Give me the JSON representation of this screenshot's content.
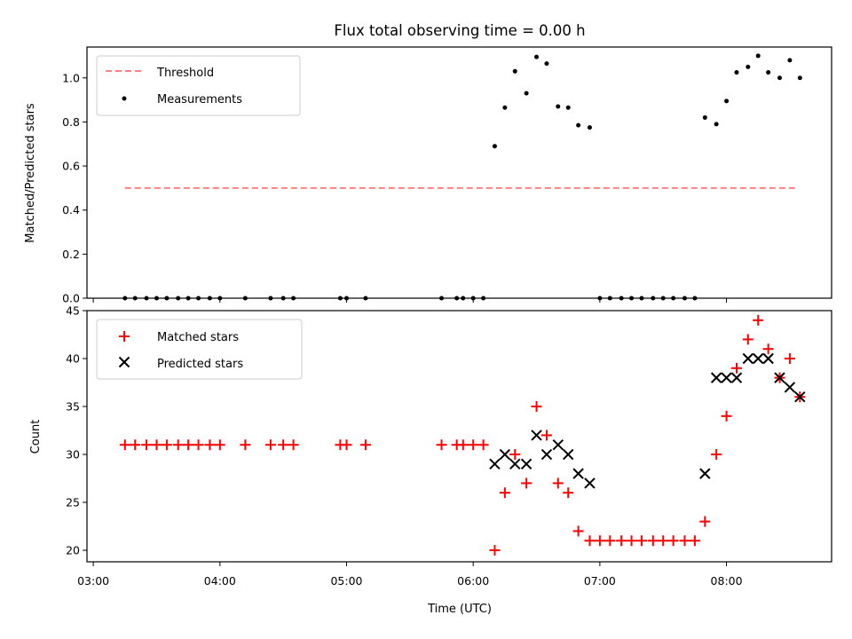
{
  "chart_data": [
    {
      "type": "scatter",
      "title": "Flux total observing time = 0.00 h",
      "xlabel": "",
      "ylabel": "Matched/Predicted stars",
      "ylim": [
        0,
        1.14
      ],
      "yticks": [
        "0.0",
        "0.2",
        "0.4",
        "0.6",
        "0.8",
        "1.0"
      ],
      "legend_position": "upper-left",
      "threshold": {
        "name": "Threshold",
        "value": 0.5,
        "x_range": [
          3.25,
          8.55
        ],
        "color": "#ff8080"
      },
      "series": [
        {
          "name": "Measurements",
          "marker": "dot",
          "color": "#000000",
          "x": [
            3.25,
            3.33,
            3.42,
            3.5,
            3.58,
            3.67,
            3.75,
            3.83,
            3.92,
            4.0,
            4.2,
            4.4,
            4.5,
            4.58,
            4.95,
            5.0,
            5.15,
            5.75,
            5.87,
            5.92,
            6.0,
            6.08,
            6.17,
            6.25,
            6.33,
            6.42,
            6.5,
            6.58,
            6.67,
            6.75,
            6.83,
            6.92,
            7.0,
            7.08,
            7.17,
            7.25,
            7.33,
            7.42,
            7.5,
            7.58,
            7.67,
            7.75,
            7.83,
            7.92,
            8.0,
            8.08,
            8.17,
            8.25,
            8.33,
            8.42,
            8.5,
            8.58
          ],
          "y": [
            0,
            0,
            0,
            0,
            0,
            0,
            0,
            0,
            0,
            0,
            0,
            0,
            0,
            0,
            0,
            0,
            0,
            0,
            0,
            0,
            0,
            0,
            0.69,
            0.865,
            1.03,
            0.93,
            1.095,
            1.065,
            0.87,
            0.865,
            0.785,
            0.775,
            0,
            0,
            0,
            0,
            0,
            0,
            0,
            0,
            0,
            0,
            0.82,
            0.79,
            0.895,
            1.025,
            1.05,
            1.1,
            1.025,
            1.0,
            1.08,
            1.0
          ]
        }
      ]
    },
    {
      "type": "scatter",
      "title": "",
      "xlabel": "Time (UTC)",
      "ylabel": "Count",
      "ylim": [
        18.8,
        45
      ],
      "yticks": [
        "20",
        "25",
        "30",
        "35",
        "40",
        "45"
      ],
      "xticks": [
        "03:00",
        "04:00",
        "05:00",
        "06:00",
        "07:00",
        "08:00"
      ],
      "xlim": [
        2.95,
        8.83
      ],
      "legend_position": "upper-left",
      "series": [
        {
          "name": "Matched stars",
          "marker": "plus",
          "color": "#ff0000",
          "x": [
            3.25,
            3.33,
            3.42,
            3.5,
            3.58,
            3.67,
            3.75,
            3.83,
            3.92,
            4.0,
            4.2,
            4.4,
            4.5,
            4.58,
            4.95,
            5.0,
            5.15,
            5.75,
            5.87,
            5.92,
            6.0,
            6.08,
            6.17,
            6.25,
            6.33,
            6.42,
            6.5,
            6.58,
            6.67,
            6.75,
            6.83,
            6.92,
            7.0,
            7.08,
            7.17,
            7.25,
            7.33,
            7.42,
            7.5,
            7.58,
            7.67,
            7.75,
            7.83,
            7.92,
            8.0,
            8.08,
            8.17,
            8.25,
            8.33,
            8.42,
            8.5,
            8.58
          ],
          "y": [
            31,
            31,
            31,
            31,
            31,
            31,
            31,
            31,
            31,
            31,
            31,
            31,
            31,
            31,
            31,
            31,
            31,
            31,
            31,
            31,
            31,
            31,
            20,
            26,
            30,
            27,
            35,
            32,
            27,
            26,
            22,
            21,
            21,
            21,
            21,
            21,
            21,
            21,
            21,
            21,
            21,
            21,
            23,
            30,
            34,
            39,
            42,
            44,
            41,
            38,
            40,
            36
          ]
        },
        {
          "name": "Predicted stars",
          "marker": "x",
          "color": "#000000",
          "x": [
            6.17,
            6.25,
            6.33,
            6.42,
            6.5,
            6.58,
            6.67,
            6.75,
            6.83,
            6.92,
            7.83,
            7.92,
            8.0,
            8.08,
            8.17,
            8.25,
            8.33,
            8.42,
            8.5,
            8.58
          ],
          "y": [
            29,
            30,
            29,
            29,
            32,
            30,
            31,
            30,
            28,
            27,
            28,
            38,
            38,
            38,
            40,
            40,
            40,
            38,
            37,
            36
          ]
        }
      ]
    }
  ]
}
